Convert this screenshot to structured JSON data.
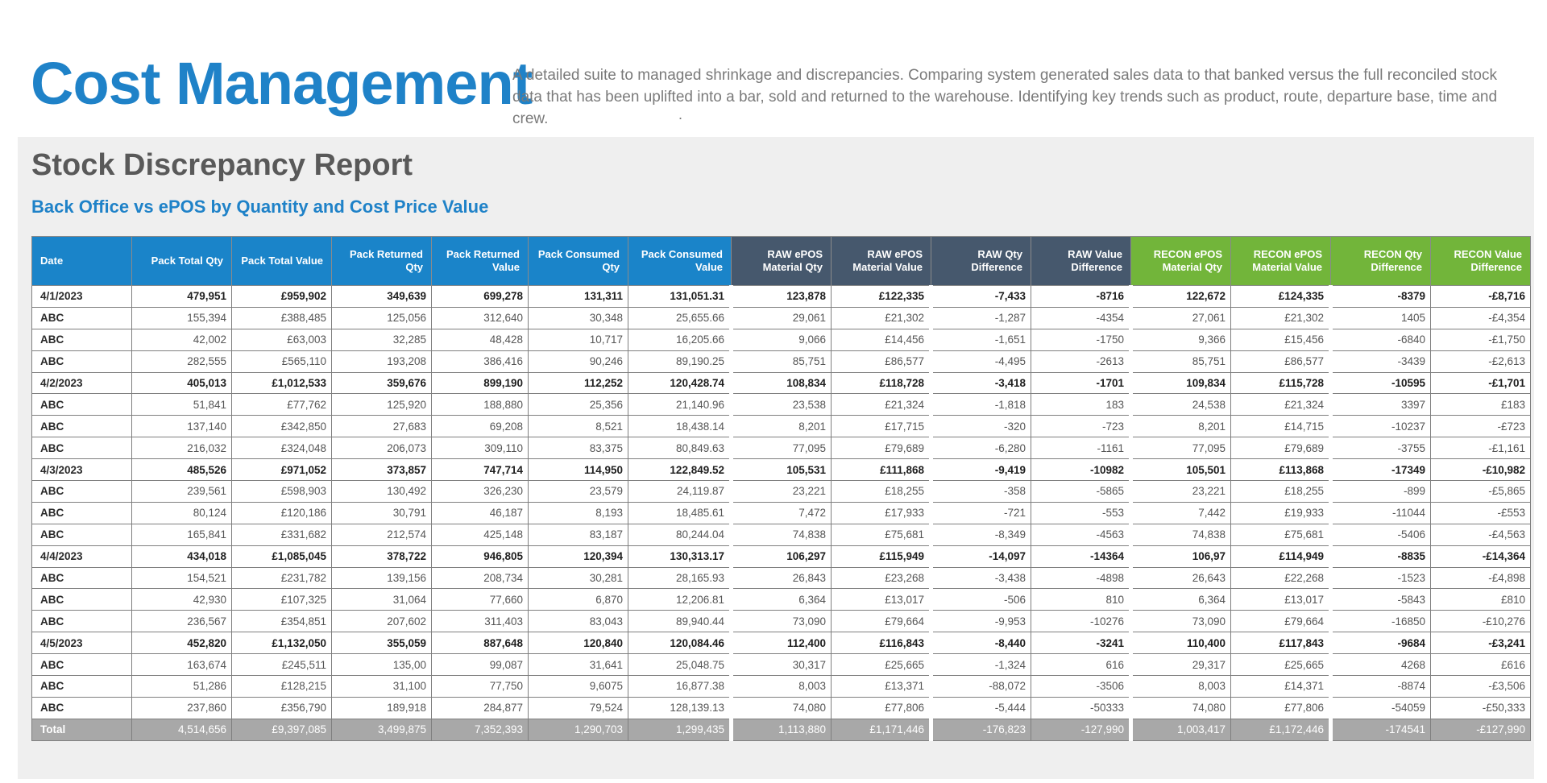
{
  "header": {
    "title": "Cost Management",
    "description": "A detailed suite to managed shrinkage and discrepancies. Comparing system generated sales data to that banked versus the full reconciled stock data that has been uplifted into a bar, sold and returned to the warehouse. Identifying key trends such as product, route, departure base, time and crew.",
    "dot": "."
  },
  "report": {
    "title": "Stock Discrepancy Report",
    "subtitle": "Back Office vs ePOS by Quantity and Cost Price Value"
  },
  "colors": {
    "title_blue": "#1f82c8",
    "header_blue": "#1a84c9",
    "header_navy": "#46586d",
    "header_green": "#72b53a",
    "total_grey": "#a8a8a8"
  },
  "table": {
    "columns": [
      "Date",
      "Pack Total Qty",
      "Pack Total Value",
      "Pack Returned Qty",
      "Pack Returned Value",
      "Pack Consumed Qty",
      "Pack Consumed Value",
      "RAW ePOS Material Qty",
      "RAW ePOS Material Value",
      "RAW Qty Difference",
      "RAW Value Difference",
      "RECON ePOS Material Qty",
      "RECON ePOS Material Value",
      "RECON Qty Difference",
      "RECON Value Difference"
    ],
    "rows": [
      {
        "type": "group",
        "cells": [
          "4/1/2023",
          "479,951",
          "£959,902",
          "349,639",
          "699,278",
          "131,311",
          "131,051.31",
          "123,878",
          "£122,335",
          "-7,433",
          "-8716",
          "122,672",
          "£124,335",
          "-8379",
          "-£8,716"
        ]
      },
      {
        "type": "item",
        "cells": [
          "ABC",
          "155,394",
          "£388,485",
          "125,056",
          "312,640",
          "30,348",
          "25,655.66",
          "29,061",
          "£21,302",
          "-1,287",
          "-4354",
          "27,061",
          "£21,302",
          "1405",
          "-£4,354"
        ]
      },
      {
        "type": "item",
        "cells": [
          "ABC",
          "42,002",
          "£63,003",
          "32,285",
          "48,428",
          "10,717",
          "16,205.66",
          "9,066",
          "£14,456",
          "-1,651",
          "-1750",
          "9,366",
          "£15,456",
          "-6840",
          "-£1,750"
        ]
      },
      {
        "type": "item",
        "cells": [
          "ABC",
          "282,555",
          "£565,110",
          "193,208",
          "386,416",
          "90,246",
          "89,190.25",
          "85,751",
          "£86,577",
          "-4,495",
          "-2613",
          "85,751",
          "£86,577",
          "-3439",
          "-£2,613"
        ]
      },
      {
        "type": "group",
        "cells": [
          "4/2/2023",
          "405,013",
          "£1,012,533",
          "359,676",
          "899,190",
          "112,252",
          "120,428.74",
          "108,834",
          "£118,728",
          "-3,418",
          "-1701",
          "109,834",
          "£115,728",
          "-10595",
          "-£1,701"
        ]
      },
      {
        "type": "item",
        "cells": [
          "ABC",
          "51,841",
          "£77,762",
          "125,920",
          "188,880",
          "25,356",
          "21,140.96",
          "23,538",
          "£21,324",
          "-1,818",
          "183",
          "24,538",
          "£21,324",
          "3397",
          "£183"
        ]
      },
      {
        "type": "item",
        "cells": [
          "ABC",
          "137,140",
          "£342,850",
          "27,683",
          "69,208",
          "8,521",
          "18,438.14",
          "8,201",
          "£17,715",
          "-320",
          "-723",
          "8,201",
          "£14,715",
          "-10237",
          "-£723"
        ]
      },
      {
        "type": "item",
        "cells": [
          "ABC",
          "216,032",
          "£324,048",
          "206,073",
          "309,110",
          "83,375",
          "80,849.63",
          "77,095",
          "£79,689",
          "-6,280",
          "-1161",
          "77,095",
          "£79,689",
          "-3755",
          "-£1,161"
        ]
      },
      {
        "type": "group",
        "cells": [
          "4/3/2023",
          "485,526",
          "£971,052",
          "373,857",
          "747,714",
          "114,950",
          "122,849.52",
          "105,531",
          "£111,868",
          "-9,419",
          "-10982",
          "105,501",
          "£113,868",
          "-17349",
          "-£10,982"
        ]
      },
      {
        "type": "item",
        "cells": [
          "ABC",
          "239,561",
          "£598,903",
          "130,492",
          "326,230",
          "23,579",
          "24,119.87",
          "23,221",
          "£18,255",
          "-358",
          "-5865",
          "23,221",
          "£18,255",
          "-899",
          "-£5,865"
        ]
      },
      {
        "type": "item",
        "cells": [
          "ABC",
          "80,124",
          "£120,186",
          "30,791",
          "46,187",
          "8,193",
          "18,485.61",
          "7,472",
          "£17,933",
          "-721",
          "-553",
          "7,442",
          "£19,933",
          "-11044",
          "-£553"
        ]
      },
      {
        "type": "item",
        "cells": [
          "ABC",
          "165,841",
          "£331,682",
          "212,574",
          "425,148",
          "83,187",
          "80,244.04",
          "74,838",
          "£75,681",
          "-8,349",
          "-4563",
          "74,838",
          "£75,681",
          "-5406",
          "-£4,563"
        ]
      },
      {
        "type": "group",
        "cells": [
          "4/4/2023",
          "434,018",
          "£1,085,045",
          "378,722",
          "946,805",
          "120,394",
          "130,313.17",
          "106,297",
          "£115,949",
          "-14,097",
          "-14364",
          "106,97",
          "£114,949",
          "-8835",
          "-£14,364"
        ]
      },
      {
        "type": "item",
        "cells": [
          "ABC",
          "154,521",
          "£231,782",
          "139,156",
          "208,734",
          "30,281",
          "28,165.93",
          "26,843",
          "£23,268",
          "-3,438",
          "-4898",
          "26,643",
          "£22,268",
          "-1523",
          "-£4,898"
        ]
      },
      {
        "type": "item",
        "cells": [
          "ABC",
          "42,930",
          "£107,325",
          "31,064",
          "77,660",
          "6,870",
          "12,206.81",
          "6,364",
          "£13,017",
          "-506",
          "810",
          "6,364",
          "£13,017",
          "-5843",
          "£810"
        ]
      },
      {
        "type": "item",
        "cells": [
          "ABC",
          "236,567",
          "£354,851",
          "207,602",
          "311,403",
          "83,043",
          "89,940.44",
          "73,090",
          "£79,664",
          "-9,953",
          "-10276",
          "73,090",
          "£79,664",
          "-16850",
          "-£10,276"
        ]
      },
      {
        "type": "group",
        "cells": [
          "4/5/2023",
          "452,820",
          "£1,132,050",
          "355,059",
          "887,648",
          "120,840",
          "120,084.46",
          "112,400",
          "£116,843",
          "-8,440",
          "-3241",
          "110,400",
          "£117,843",
          "-9684",
          "-£3,241"
        ]
      },
      {
        "type": "item",
        "cells": [
          "ABC",
          "163,674",
          "£245,511",
          "135,00",
          "99,087",
          "31,641",
          "25,048.75",
          "30,317",
          "£25,665",
          "-1,324",
          "616",
          "29,317",
          "£25,665",
          "4268",
          "£616"
        ]
      },
      {
        "type": "item",
        "cells": [
          "ABC",
          "51,286",
          "£128,215",
          "31,100",
          "77,750",
          "9,6075",
          "16,877.38",
          "8,003",
          "£13,371",
          "-88,072",
          "-3506",
          "8,003",
          "£14,371",
          "-8874",
          "-£3,506"
        ]
      },
      {
        "type": "item",
        "cells": [
          "ABC",
          "237,860",
          "£356,790",
          "189,918",
          "284,877",
          "79,524",
          "128,139.13",
          "74,080",
          "£77,806",
          "-5,444",
          "-50333",
          "74,080",
          "£77,806",
          "-54059",
          "-£50,333"
        ]
      },
      {
        "type": "total",
        "cells": [
          "Total",
          "4,514,656",
          "£9,397,085",
          "3,499,875",
          "7,352,393",
          "1,290,703",
          "1,299,435",
          "1,113,880",
          "£1,171,446",
          "-176,823",
          "-127,990",
          "1,003,417",
          "£1,172,446",
          "-174541",
          "-£127,990"
        ]
      }
    ]
  }
}
